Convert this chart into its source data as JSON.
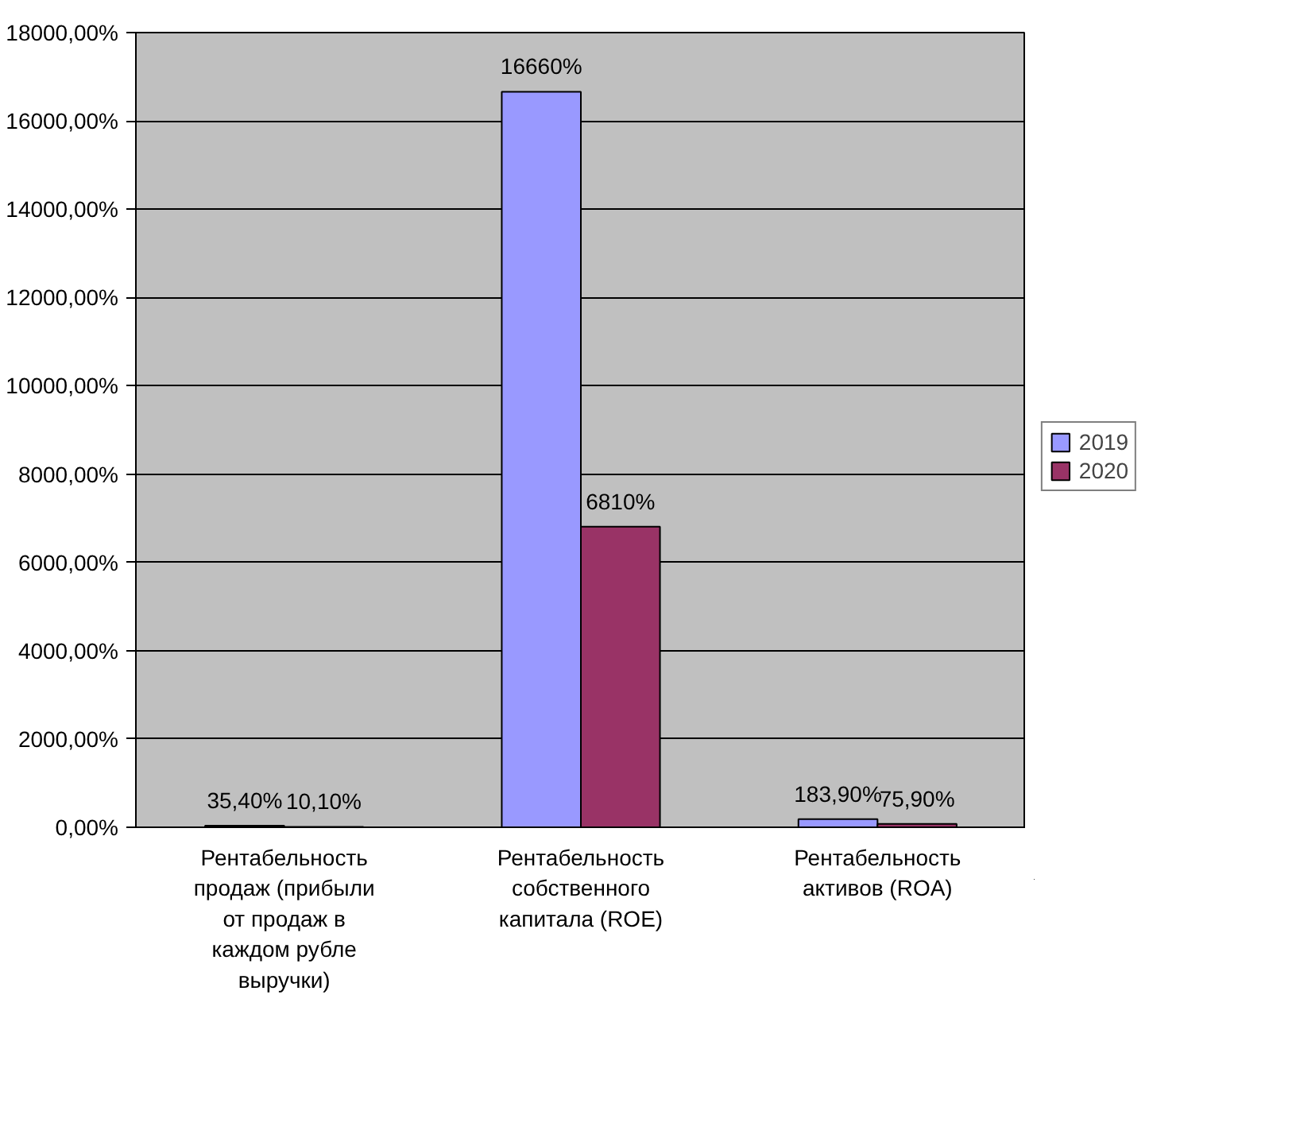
{
  "chart_data": {
    "type": "bar",
    "categories": [
      "Рентабельность продаж (прибыли от продаж в каждом рубле выручки)",
      "Рентабельность собственного капитала (ROE)",
      "Рентабельность активов (ROA)"
    ],
    "series": [
      {
        "name": "2019",
        "color": "#9999ff",
        "values": [
          35.4,
          16660,
          183.9
        ],
        "value_labels": [
          "35,40%",
          "16660%",
          "183,90%"
        ]
      },
      {
        "name": "2020",
        "color": "#993366",
        "values": [
          10.1,
          6810,
          75.9
        ],
        "value_labels": [
          "10,10%",
          "6810%",
          "75,90%"
        ]
      }
    ],
    "ylim": [
      0,
      18000
    ],
    "yticks": [
      {
        "value": 0,
        "label": "0,00%"
      },
      {
        "value": 2000,
        "label": "2000,00%"
      },
      {
        "value": 4000,
        "label": "4000,00%"
      },
      {
        "value": 6000,
        "label": "6000,00%"
      },
      {
        "value": 8000,
        "label": "8000,00%"
      },
      {
        "value": 10000,
        "label": "10000,00%"
      },
      {
        "value": 12000,
        "label": "12000,00%"
      },
      {
        "value": 14000,
        "label": "14000,00%"
      },
      {
        "value": 16000,
        "label": "16000,00%"
      },
      {
        "value": 18000,
        "label": "18000,00%"
      }
    ],
    "grid": "y",
    "legend": "right"
  }
}
